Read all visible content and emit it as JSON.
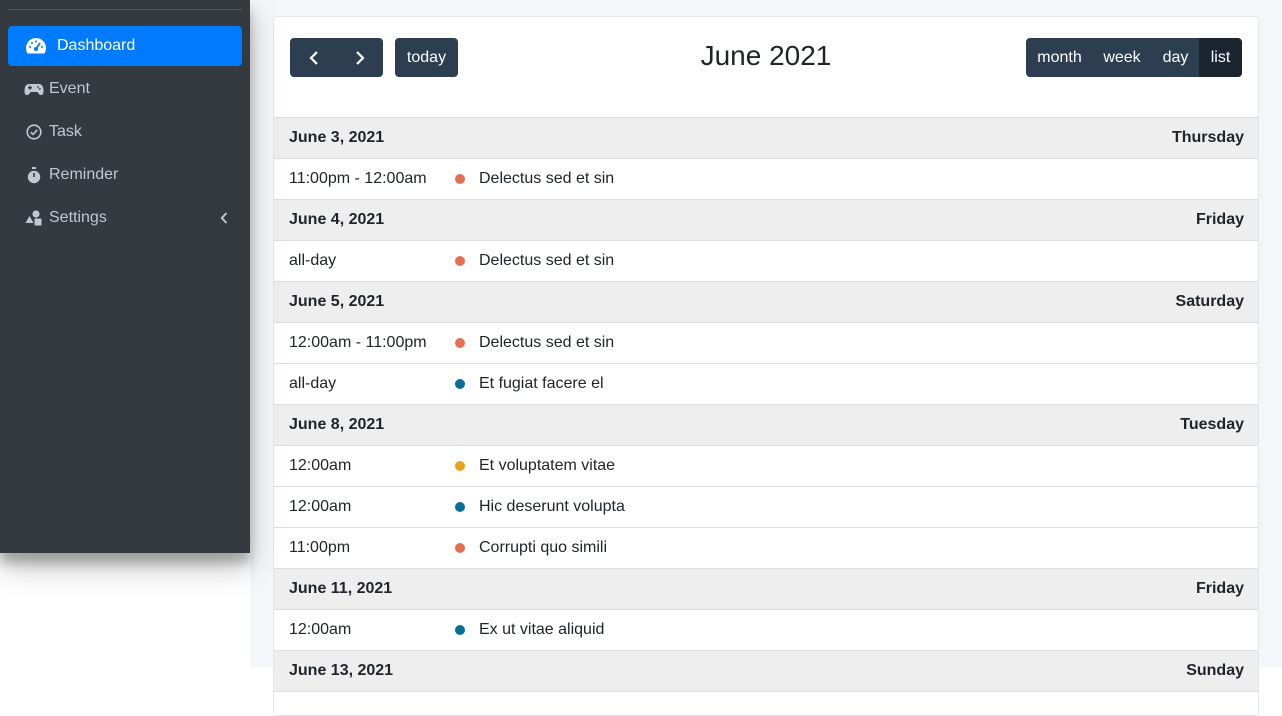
{
  "sidebar": {
    "items": [
      {
        "label": "Dashboard",
        "icon": "tachometer-icon",
        "active": true
      },
      {
        "label": "Event",
        "icon": "gamepad-icon"
      },
      {
        "label": "Task",
        "icon": "check-circle-icon"
      },
      {
        "label": "Reminder",
        "icon": "stopwatch-icon"
      },
      {
        "label": "Settings",
        "icon": "shapes-icon",
        "has_children": true
      }
    ]
  },
  "toolbar": {
    "today_label": "today",
    "title": "June 2021",
    "views": {
      "month": "month",
      "week": "week",
      "day": "day",
      "list": "list"
    },
    "active_view": "list"
  },
  "colors": {
    "sidebar_bg": "#343a40",
    "active_blue": "#007bff",
    "button_dark": "#2c3e50",
    "event_red": "#e76f51",
    "event_blue": "#0b6e99",
    "event_orange": "#e9a21b"
  },
  "days": [
    {
      "date": "June 3, 2021",
      "weekday": "Thursday",
      "events": [
        {
          "time": "11:00pm - 12:00am",
          "title": "Delectus sed et sin",
          "color": "#e76f51"
        }
      ]
    },
    {
      "date": "June 4, 2021",
      "weekday": "Friday",
      "events": [
        {
          "time": "all-day",
          "title": "Delectus sed et sin",
          "color": "#e76f51"
        }
      ]
    },
    {
      "date": "June 5, 2021",
      "weekday": "Saturday",
      "events": [
        {
          "time": "12:00am - 11:00pm",
          "title": "Delectus sed et sin",
          "color": "#e76f51"
        },
        {
          "time": "all-day",
          "title": "Et fugiat facere el",
          "color": "#0b6e99"
        }
      ]
    },
    {
      "date": "June 8, 2021",
      "weekday": "Tuesday",
      "events": [
        {
          "time": "12:00am",
          "title": "Et voluptatem vitae",
          "color": "#e9a21b"
        },
        {
          "time": "12:00am",
          "title": "Hic deserunt volupta",
          "color": "#0b6e99"
        },
        {
          "time": "11:00pm",
          "title": "Corrupti quo simili",
          "color": "#e76f51"
        }
      ]
    },
    {
      "date": "June 11, 2021",
      "weekday": "Friday",
      "events": [
        {
          "time": "12:00am",
          "title": "Ex ut vitae aliquid",
          "color": "#0b6e99"
        }
      ]
    },
    {
      "date": "June 13, 2021",
      "weekday": "Sunday",
      "events": []
    }
  ]
}
